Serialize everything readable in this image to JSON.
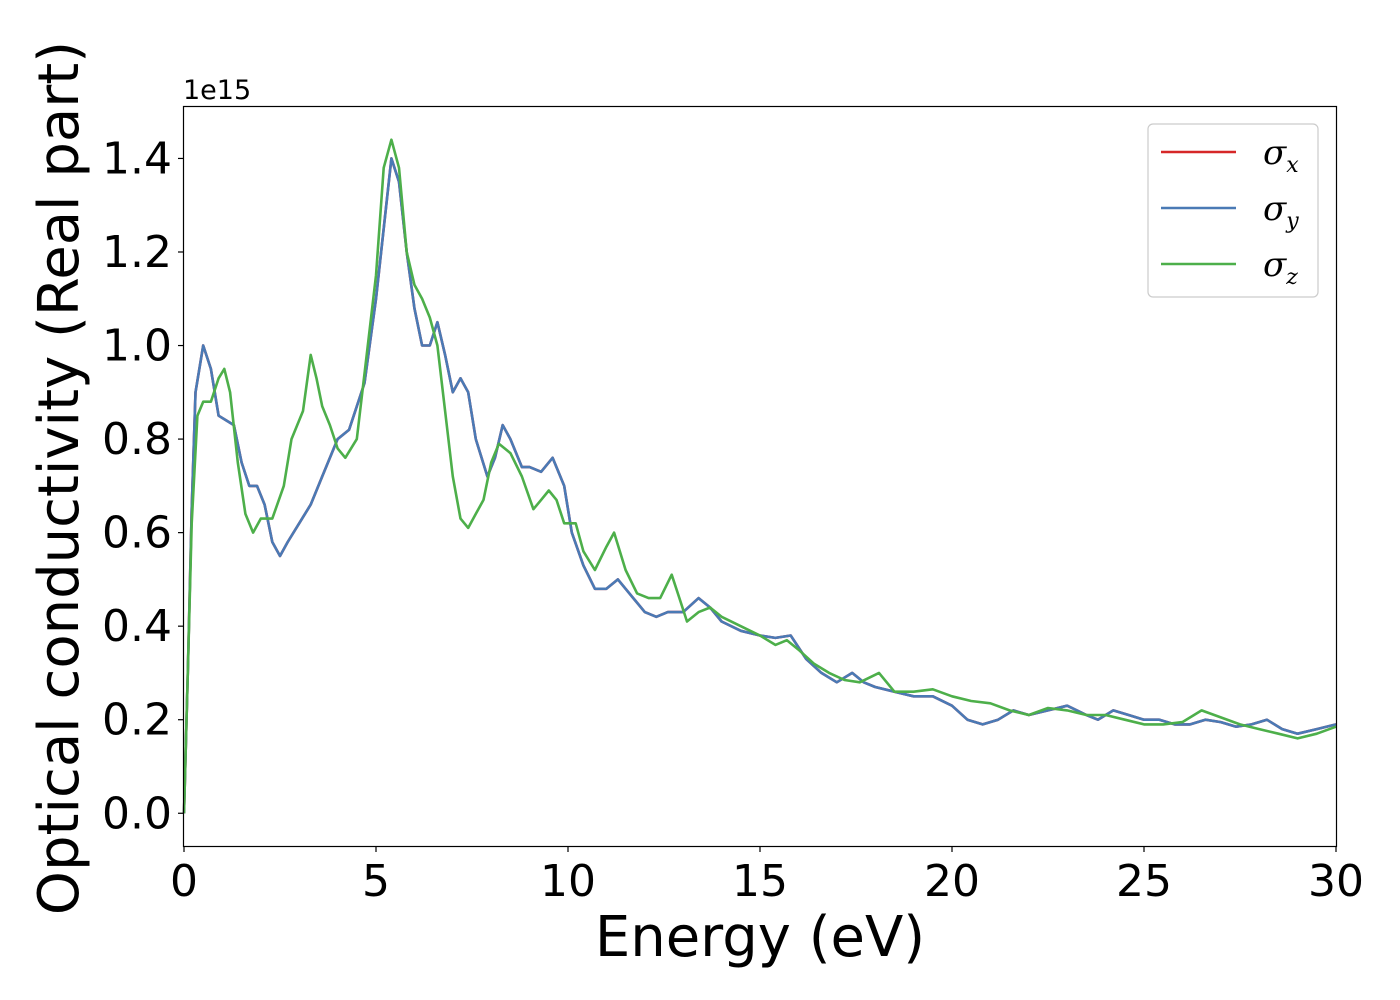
{
  "chart_data": {
    "type": "line",
    "title": "",
    "xlabel": "Energy (eV)",
    "ylabel": "Optical conductivity (Real part)",
    "y_offset_label": "1e15",
    "xlim": [
      0,
      30
    ],
    "ylim": [
      -0.07,
      1.51
    ],
    "x_ticks": [
      0,
      5,
      10,
      15,
      20,
      25,
      30
    ],
    "x_tick_labels": [
      "0",
      "5",
      "10",
      "15",
      "20",
      "25",
      "30"
    ],
    "y_ticks": [
      0.0,
      0.2,
      0.4,
      0.6,
      0.8,
      1.0,
      1.2,
      1.4
    ],
    "y_tick_labels": [
      "0.0",
      "0.2",
      "0.4",
      "0.6",
      "0.8",
      "1.0",
      "1.2",
      "1.4"
    ],
    "grid": false,
    "legend_position": "top-right",
    "series": [
      {
        "name": "σ",
        "subscript": "x",
        "color": "#d62728",
        "points": [
          [
            0,
            0.0
          ],
          [
            0.1,
            0.3
          ],
          [
            0.2,
            0.65
          ],
          [
            0.3,
            0.9
          ],
          [
            0.5,
            1.0
          ],
          [
            0.7,
            0.95
          ],
          [
            0.9,
            0.85
          ],
          [
            1.1,
            0.84
          ],
          [
            1.3,
            0.83
          ],
          [
            1.5,
            0.75
          ],
          [
            1.7,
            0.7
          ],
          [
            1.9,
            0.7
          ],
          [
            2.1,
            0.66
          ],
          [
            2.3,
            0.58
          ],
          [
            2.5,
            0.55
          ],
          [
            2.7,
            0.58
          ],
          [
            3.0,
            0.62
          ],
          [
            3.3,
            0.66
          ],
          [
            3.6,
            0.72
          ],
          [
            4.0,
            0.8
          ],
          [
            4.3,
            0.82
          ],
          [
            4.7,
            0.92
          ],
          [
            5.0,
            1.1
          ],
          [
            5.2,
            1.25
          ],
          [
            5.4,
            1.4
          ],
          [
            5.6,
            1.35
          ],
          [
            5.8,
            1.2
          ],
          [
            6.0,
            1.08
          ],
          [
            6.2,
            1.0
          ],
          [
            6.4,
            1.0
          ],
          [
            6.6,
            1.05
          ],
          [
            6.8,
            0.98
          ],
          [
            7.0,
            0.9
          ],
          [
            7.2,
            0.93
          ],
          [
            7.4,
            0.9
          ],
          [
            7.6,
            0.8
          ],
          [
            7.9,
            0.72
          ],
          [
            8.1,
            0.76
          ],
          [
            8.3,
            0.83
          ],
          [
            8.5,
            0.8
          ],
          [
            8.8,
            0.74
          ],
          [
            9.0,
            0.74
          ],
          [
            9.3,
            0.73
          ],
          [
            9.6,
            0.76
          ],
          [
            9.9,
            0.7
          ],
          [
            10.1,
            0.6
          ],
          [
            10.4,
            0.53
          ],
          [
            10.7,
            0.48
          ],
          [
            11.0,
            0.48
          ],
          [
            11.3,
            0.5
          ],
          [
            11.6,
            0.47
          ],
          [
            12.0,
            0.43
          ],
          [
            12.3,
            0.42
          ],
          [
            12.6,
            0.43
          ],
          [
            13.0,
            0.43
          ],
          [
            13.4,
            0.46
          ],
          [
            13.7,
            0.44
          ],
          [
            14.0,
            0.41
          ],
          [
            14.5,
            0.39
          ],
          [
            15.0,
            0.38
          ],
          [
            15.4,
            0.375
          ],
          [
            15.8,
            0.38
          ],
          [
            16.2,
            0.33
          ],
          [
            16.6,
            0.3
          ],
          [
            17.0,
            0.28
          ],
          [
            17.4,
            0.3
          ],
          [
            17.7,
            0.28
          ],
          [
            18.0,
            0.27
          ],
          [
            18.5,
            0.26
          ],
          [
            19.0,
            0.25
          ],
          [
            19.5,
            0.25
          ],
          [
            20.0,
            0.23
          ],
          [
            20.4,
            0.2
          ],
          [
            20.8,
            0.19
          ],
          [
            21.2,
            0.2
          ],
          [
            21.6,
            0.22
          ],
          [
            22.0,
            0.21
          ],
          [
            22.5,
            0.22
          ],
          [
            23.0,
            0.23
          ],
          [
            23.5,
            0.21
          ],
          [
            23.8,
            0.2
          ],
          [
            24.2,
            0.22
          ],
          [
            24.6,
            0.21
          ],
          [
            25.0,
            0.2
          ],
          [
            25.4,
            0.2
          ],
          [
            25.8,
            0.19
          ],
          [
            26.2,
            0.19
          ],
          [
            26.6,
            0.2
          ],
          [
            27.0,
            0.195
          ],
          [
            27.4,
            0.185
          ],
          [
            27.8,
            0.19
          ],
          [
            28.2,
            0.2
          ],
          [
            28.6,
            0.18
          ],
          [
            29.0,
            0.17
          ],
          [
            29.5,
            0.18
          ],
          [
            30.0,
            0.19
          ]
        ]
      },
      {
        "name": "σ",
        "subscript": "y",
        "color": "#4a7ab5",
        "points": [
          [
            0,
            0.0
          ],
          [
            0.1,
            0.3
          ],
          [
            0.2,
            0.65
          ],
          [
            0.3,
            0.9
          ],
          [
            0.5,
            1.0
          ],
          [
            0.7,
            0.95
          ],
          [
            0.9,
            0.85
          ],
          [
            1.1,
            0.84
          ],
          [
            1.3,
            0.83
          ],
          [
            1.5,
            0.75
          ],
          [
            1.7,
            0.7
          ],
          [
            1.9,
            0.7
          ],
          [
            2.1,
            0.66
          ],
          [
            2.3,
            0.58
          ],
          [
            2.5,
            0.55
          ],
          [
            2.7,
            0.58
          ],
          [
            3.0,
            0.62
          ],
          [
            3.3,
            0.66
          ],
          [
            3.6,
            0.72
          ],
          [
            4.0,
            0.8
          ],
          [
            4.3,
            0.82
          ],
          [
            4.7,
            0.92
          ],
          [
            5.0,
            1.1
          ],
          [
            5.2,
            1.25
          ],
          [
            5.4,
            1.4
          ],
          [
            5.6,
            1.35
          ],
          [
            5.8,
            1.2
          ],
          [
            6.0,
            1.08
          ],
          [
            6.2,
            1.0
          ],
          [
            6.4,
            1.0
          ],
          [
            6.6,
            1.05
          ],
          [
            6.8,
            0.98
          ],
          [
            7.0,
            0.9
          ],
          [
            7.2,
            0.93
          ],
          [
            7.4,
            0.9
          ],
          [
            7.6,
            0.8
          ],
          [
            7.9,
            0.72
          ],
          [
            8.1,
            0.76
          ],
          [
            8.3,
            0.83
          ],
          [
            8.5,
            0.8
          ],
          [
            8.8,
            0.74
          ],
          [
            9.0,
            0.74
          ],
          [
            9.3,
            0.73
          ],
          [
            9.6,
            0.76
          ],
          [
            9.9,
            0.7
          ],
          [
            10.1,
            0.6
          ],
          [
            10.4,
            0.53
          ],
          [
            10.7,
            0.48
          ],
          [
            11.0,
            0.48
          ],
          [
            11.3,
            0.5
          ],
          [
            11.6,
            0.47
          ],
          [
            12.0,
            0.43
          ],
          [
            12.3,
            0.42
          ],
          [
            12.6,
            0.43
          ],
          [
            13.0,
            0.43
          ],
          [
            13.4,
            0.46
          ],
          [
            13.7,
            0.44
          ],
          [
            14.0,
            0.41
          ],
          [
            14.5,
            0.39
          ],
          [
            15.0,
            0.38
          ],
          [
            15.4,
            0.375
          ],
          [
            15.8,
            0.38
          ],
          [
            16.2,
            0.33
          ],
          [
            16.6,
            0.3
          ],
          [
            17.0,
            0.28
          ],
          [
            17.4,
            0.3
          ],
          [
            17.7,
            0.28
          ],
          [
            18.0,
            0.27
          ],
          [
            18.5,
            0.26
          ],
          [
            19.0,
            0.25
          ],
          [
            19.5,
            0.25
          ],
          [
            20.0,
            0.23
          ],
          [
            20.4,
            0.2
          ],
          [
            20.8,
            0.19
          ],
          [
            21.2,
            0.2
          ],
          [
            21.6,
            0.22
          ],
          [
            22.0,
            0.21
          ],
          [
            22.5,
            0.22
          ],
          [
            23.0,
            0.23
          ],
          [
            23.5,
            0.21
          ],
          [
            23.8,
            0.2
          ],
          [
            24.2,
            0.22
          ],
          [
            24.6,
            0.21
          ],
          [
            25.0,
            0.2
          ],
          [
            25.4,
            0.2
          ],
          [
            25.8,
            0.19
          ],
          [
            26.2,
            0.19
          ],
          [
            26.6,
            0.2
          ],
          [
            27.0,
            0.195
          ],
          [
            27.4,
            0.185
          ],
          [
            27.8,
            0.19
          ],
          [
            28.2,
            0.2
          ],
          [
            28.6,
            0.18
          ],
          [
            29.0,
            0.17
          ],
          [
            29.5,
            0.18
          ],
          [
            30.0,
            0.19
          ]
        ]
      },
      {
        "name": "σ",
        "subscript": "z",
        "color": "#4daf4a",
        "points": [
          [
            0,
            0.0
          ],
          [
            0.1,
            0.3
          ],
          [
            0.2,
            0.62
          ],
          [
            0.35,
            0.85
          ],
          [
            0.5,
            0.88
          ],
          [
            0.7,
            0.88
          ],
          [
            0.9,
            0.93
          ],
          [
            1.05,
            0.95
          ],
          [
            1.2,
            0.9
          ],
          [
            1.4,
            0.75
          ],
          [
            1.6,
            0.64
          ],
          [
            1.8,
            0.6
          ],
          [
            2.0,
            0.63
          ],
          [
            2.3,
            0.63
          ],
          [
            2.6,
            0.7
          ],
          [
            2.8,
            0.8
          ],
          [
            3.1,
            0.86
          ],
          [
            3.3,
            0.98
          ],
          [
            3.45,
            0.93
          ],
          [
            3.6,
            0.87
          ],
          [
            3.8,
            0.83
          ],
          [
            4.0,
            0.78
          ],
          [
            4.2,
            0.76
          ],
          [
            4.5,
            0.8
          ],
          [
            4.7,
            0.94
          ],
          [
            5.0,
            1.15
          ],
          [
            5.2,
            1.38
          ],
          [
            5.4,
            1.44
          ],
          [
            5.6,
            1.38
          ],
          [
            5.8,
            1.2
          ],
          [
            6.0,
            1.13
          ],
          [
            6.2,
            1.1
          ],
          [
            6.4,
            1.06
          ],
          [
            6.6,
            1.0
          ],
          [
            6.8,
            0.86
          ],
          [
            7.0,
            0.72
          ],
          [
            7.2,
            0.63
          ],
          [
            7.4,
            0.61
          ],
          [
            7.6,
            0.64
          ],
          [
            7.8,
            0.67
          ],
          [
            8.0,
            0.75
          ],
          [
            8.2,
            0.79
          ],
          [
            8.5,
            0.77
          ],
          [
            8.8,
            0.72
          ],
          [
            9.1,
            0.65
          ],
          [
            9.3,
            0.67
          ],
          [
            9.5,
            0.69
          ],
          [
            9.7,
            0.67
          ],
          [
            9.9,
            0.62
          ],
          [
            10.2,
            0.62
          ],
          [
            10.4,
            0.56
          ],
          [
            10.7,
            0.52
          ],
          [
            11.0,
            0.57
          ],
          [
            11.2,
            0.6
          ],
          [
            11.5,
            0.52
          ],
          [
            11.8,
            0.47
          ],
          [
            12.1,
            0.46
          ],
          [
            12.4,
            0.46
          ],
          [
            12.7,
            0.51
          ],
          [
            12.9,
            0.46
          ],
          [
            13.1,
            0.41
          ],
          [
            13.4,
            0.43
          ],
          [
            13.7,
            0.44
          ],
          [
            14.0,
            0.42
          ],
          [
            14.5,
            0.4
          ],
          [
            15.0,
            0.38
          ],
          [
            15.4,
            0.36
          ],
          [
            15.7,
            0.37
          ],
          [
            16.0,
            0.35
          ],
          [
            16.4,
            0.32
          ],
          [
            16.8,
            0.3
          ],
          [
            17.2,
            0.285
          ],
          [
            17.6,
            0.28
          ],
          [
            18.1,
            0.3
          ],
          [
            18.5,
            0.26
          ],
          [
            19.0,
            0.26
          ],
          [
            19.5,
            0.265
          ],
          [
            20.0,
            0.25
          ],
          [
            20.5,
            0.24
          ],
          [
            21.0,
            0.235
          ],
          [
            21.5,
            0.22
          ],
          [
            22.0,
            0.21
          ],
          [
            22.5,
            0.225
          ],
          [
            23.0,
            0.22
          ],
          [
            23.5,
            0.21
          ],
          [
            24.0,
            0.21
          ],
          [
            24.5,
            0.2
          ],
          [
            25.0,
            0.19
          ],
          [
            25.5,
            0.19
          ],
          [
            26.0,
            0.195
          ],
          [
            26.5,
            0.22
          ],
          [
            27.0,
            0.205
          ],
          [
            27.5,
            0.19
          ],
          [
            28.0,
            0.18
          ],
          [
            28.5,
            0.17
          ],
          [
            29.0,
            0.16
          ],
          [
            29.5,
            0.17
          ],
          [
            30.0,
            0.185
          ]
        ]
      }
    ]
  }
}
